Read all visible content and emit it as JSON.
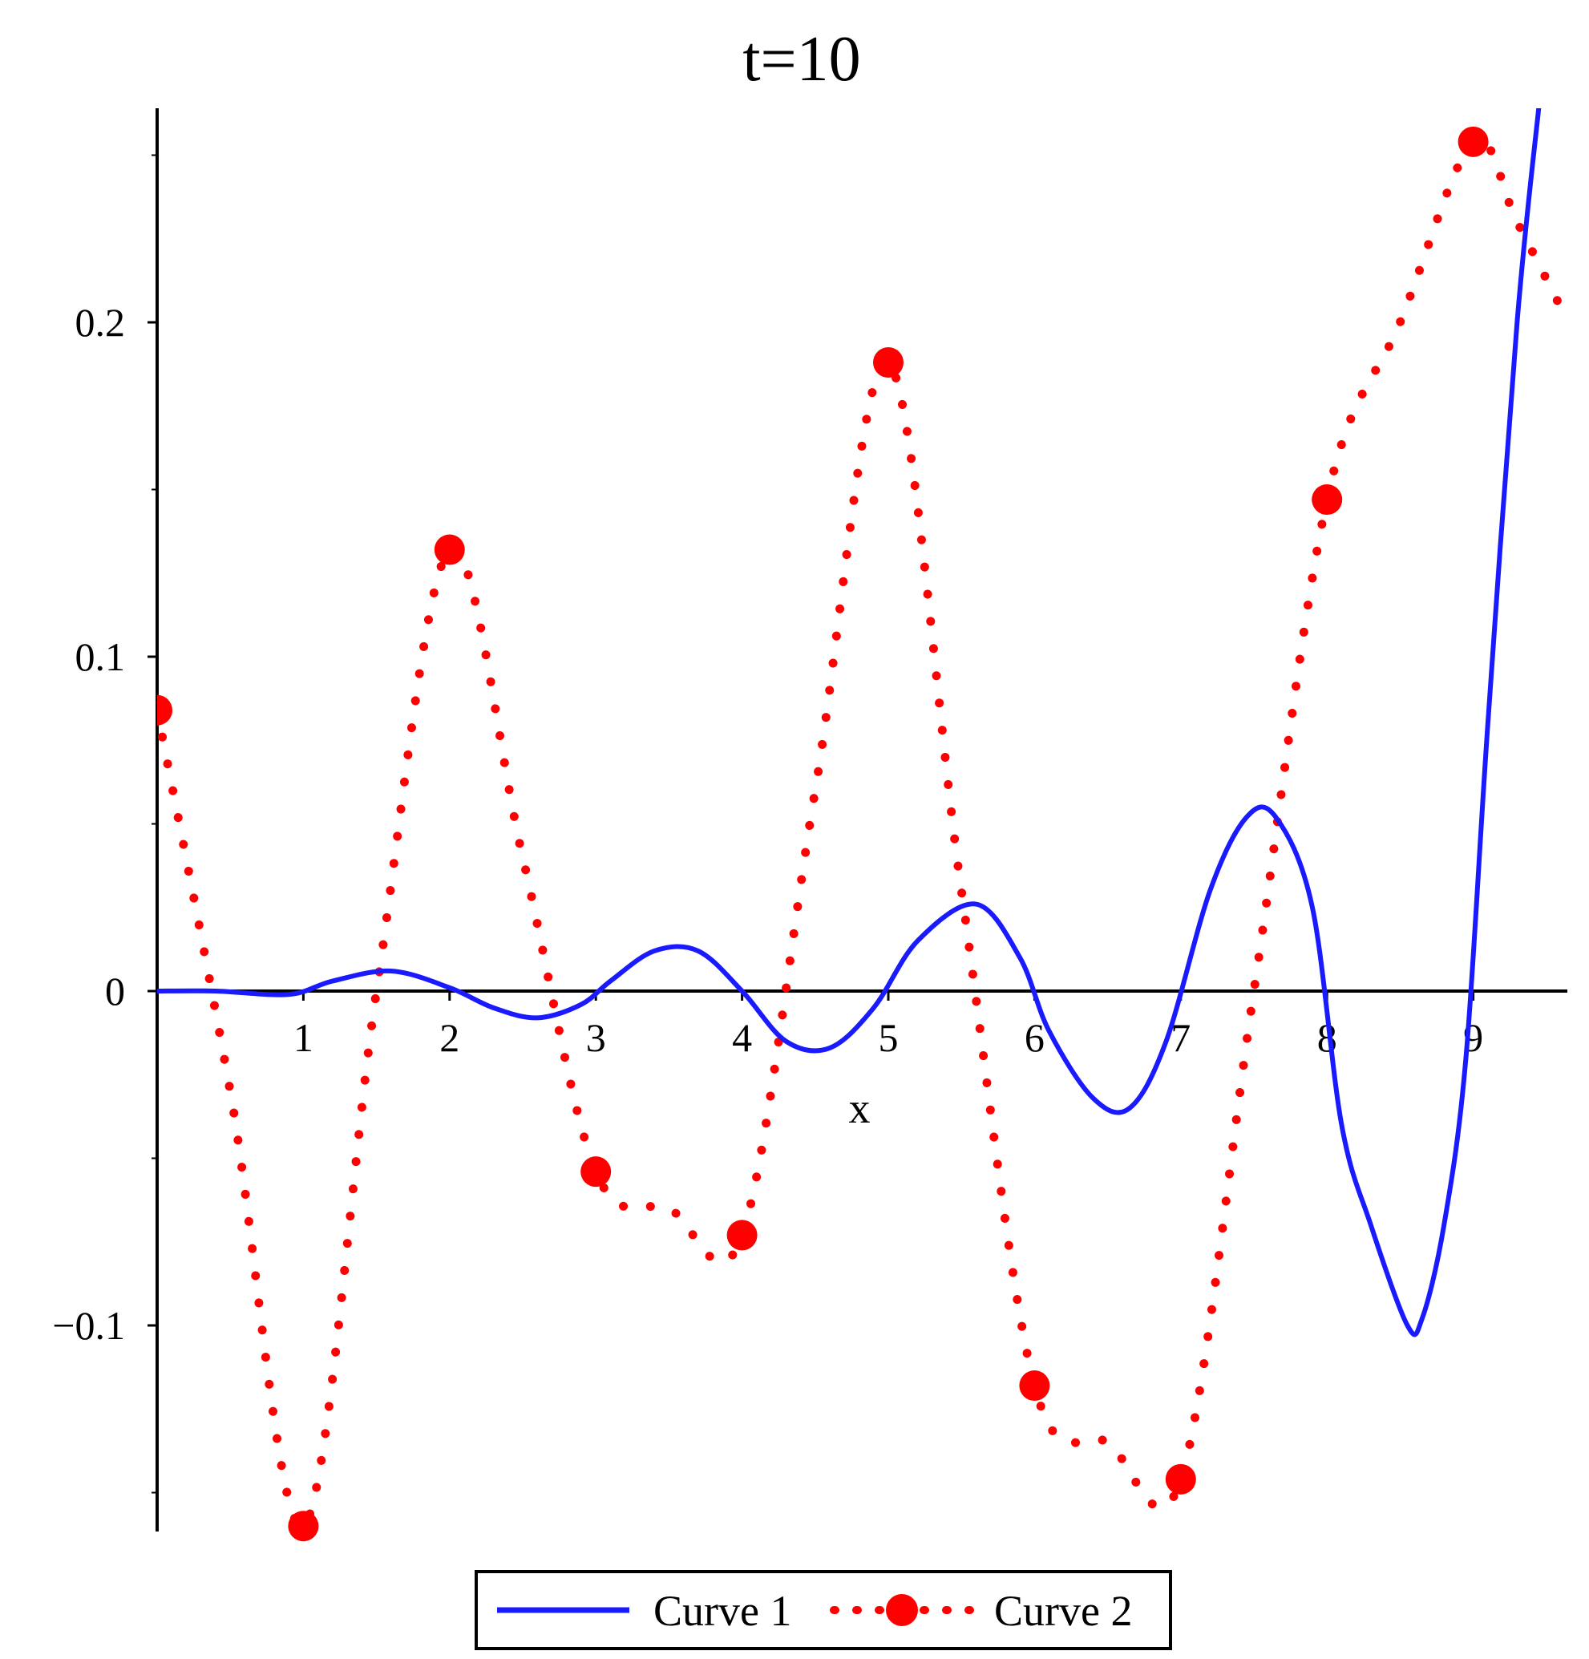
{
  "chart_data": {
    "type": "line",
    "title": "t=10",
    "xlabel": "x",
    "ylabel": "",
    "xlim": [
      0,
      9.65
    ],
    "ylim": [
      -0.16,
      0.26
    ],
    "x_ticks": [
      1,
      2,
      3,
      4,
      5,
      6,
      7,
      8,
      9
    ],
    "y_ticks": [
      -0.1,
      0,
      0.1,
      0.2
    ],
    "y_tick_labels": [
      "−0.1",
      "0",
      "0.1",
      "0.2"
    ],
    "grid": false,
    "legend": "bottom",
    "series": [
      {
        "name": "Curve 1",
        "style": "solid",
        "color": "#1a1aff",
        "x": [
          0,
          0.4,
          0.9,
          1.2,
          1.6,
          2.0,
          2.3,
          2.6,
          2.9,
          3.1,
          3.4,
          3.7,
          4.0,
          4.3,
          4.6,
          4.9,
          5.2,
          5.6,
          5.9,
          6.1,
          6.4,
          6.65,
          6.9,
          7.2,
          7.45,
          7.65,
          7.9,
          8.1,
          8.3,
          8.55,
          8.65,
          8.8,
          8.95,
          9.1,
          9.3,
          9.45
        ],
        "y": [
          0,
          0,
          -0.001,
          0.003,
          0.006,
          0.001,
          -0.005,
          -0.008,
          -0.004,
          0.003,
          0.012,
          0.012,
          0.0,
          -0.015,
          -0.017,
          -0.005,
          0.015,
          0.026,
          0.01,
          -0.012,
          -0.032,
          -0.035,
          -0.015,
          0.03,
          0.052,
          0.052,
          0.025,
          -0.04,
          -0.07,
          -0.1,
          -0.098,
          -0.07,
          -0.02,
          0.08,
          0.2,
          0.265
        ]
      },
      {
        "name": "Curve 2",
        "style": "dotted",
        "color": "#ff0000",
        "markers_x": [
          0,
          1,
          2,
          3,
          4,
          5,
          6,
          7,
          8,
          9
        ],
        "markers_y": [
          0.084,
          -0.16,
          0.132,
          -0.054,
          -0.073,
          0.188,
          -0.118,
          -0.146,
          0.147,
          0.254
        ],
        "x": [
          0,
          0.5,
          1.0,
          1.5,
          2.0,
          2.5,
          3.0,
          3.5,
          4.0,
          4.5,
          5.0,
          5.5,
          6.0,
          6.5,
          7.0,
          7.5,
          8.0,
          8.5,
          9.0,
          9.3,
          9.65
        ],
        "y": [
          0.084,
          -0.03,
          -0.16,
          0.0,
          0.132,
          0.04,
          -0.054,
          -0.065,
          -0.073,
          0.06,
          0.188,
          0.03,
          -0.118,
          -0.135,
          -0.146,
          0.0,
          0.147,
          0.2,
          0.254,
          0.23,
          0.2
        ]
      }
    ]
  }
}
